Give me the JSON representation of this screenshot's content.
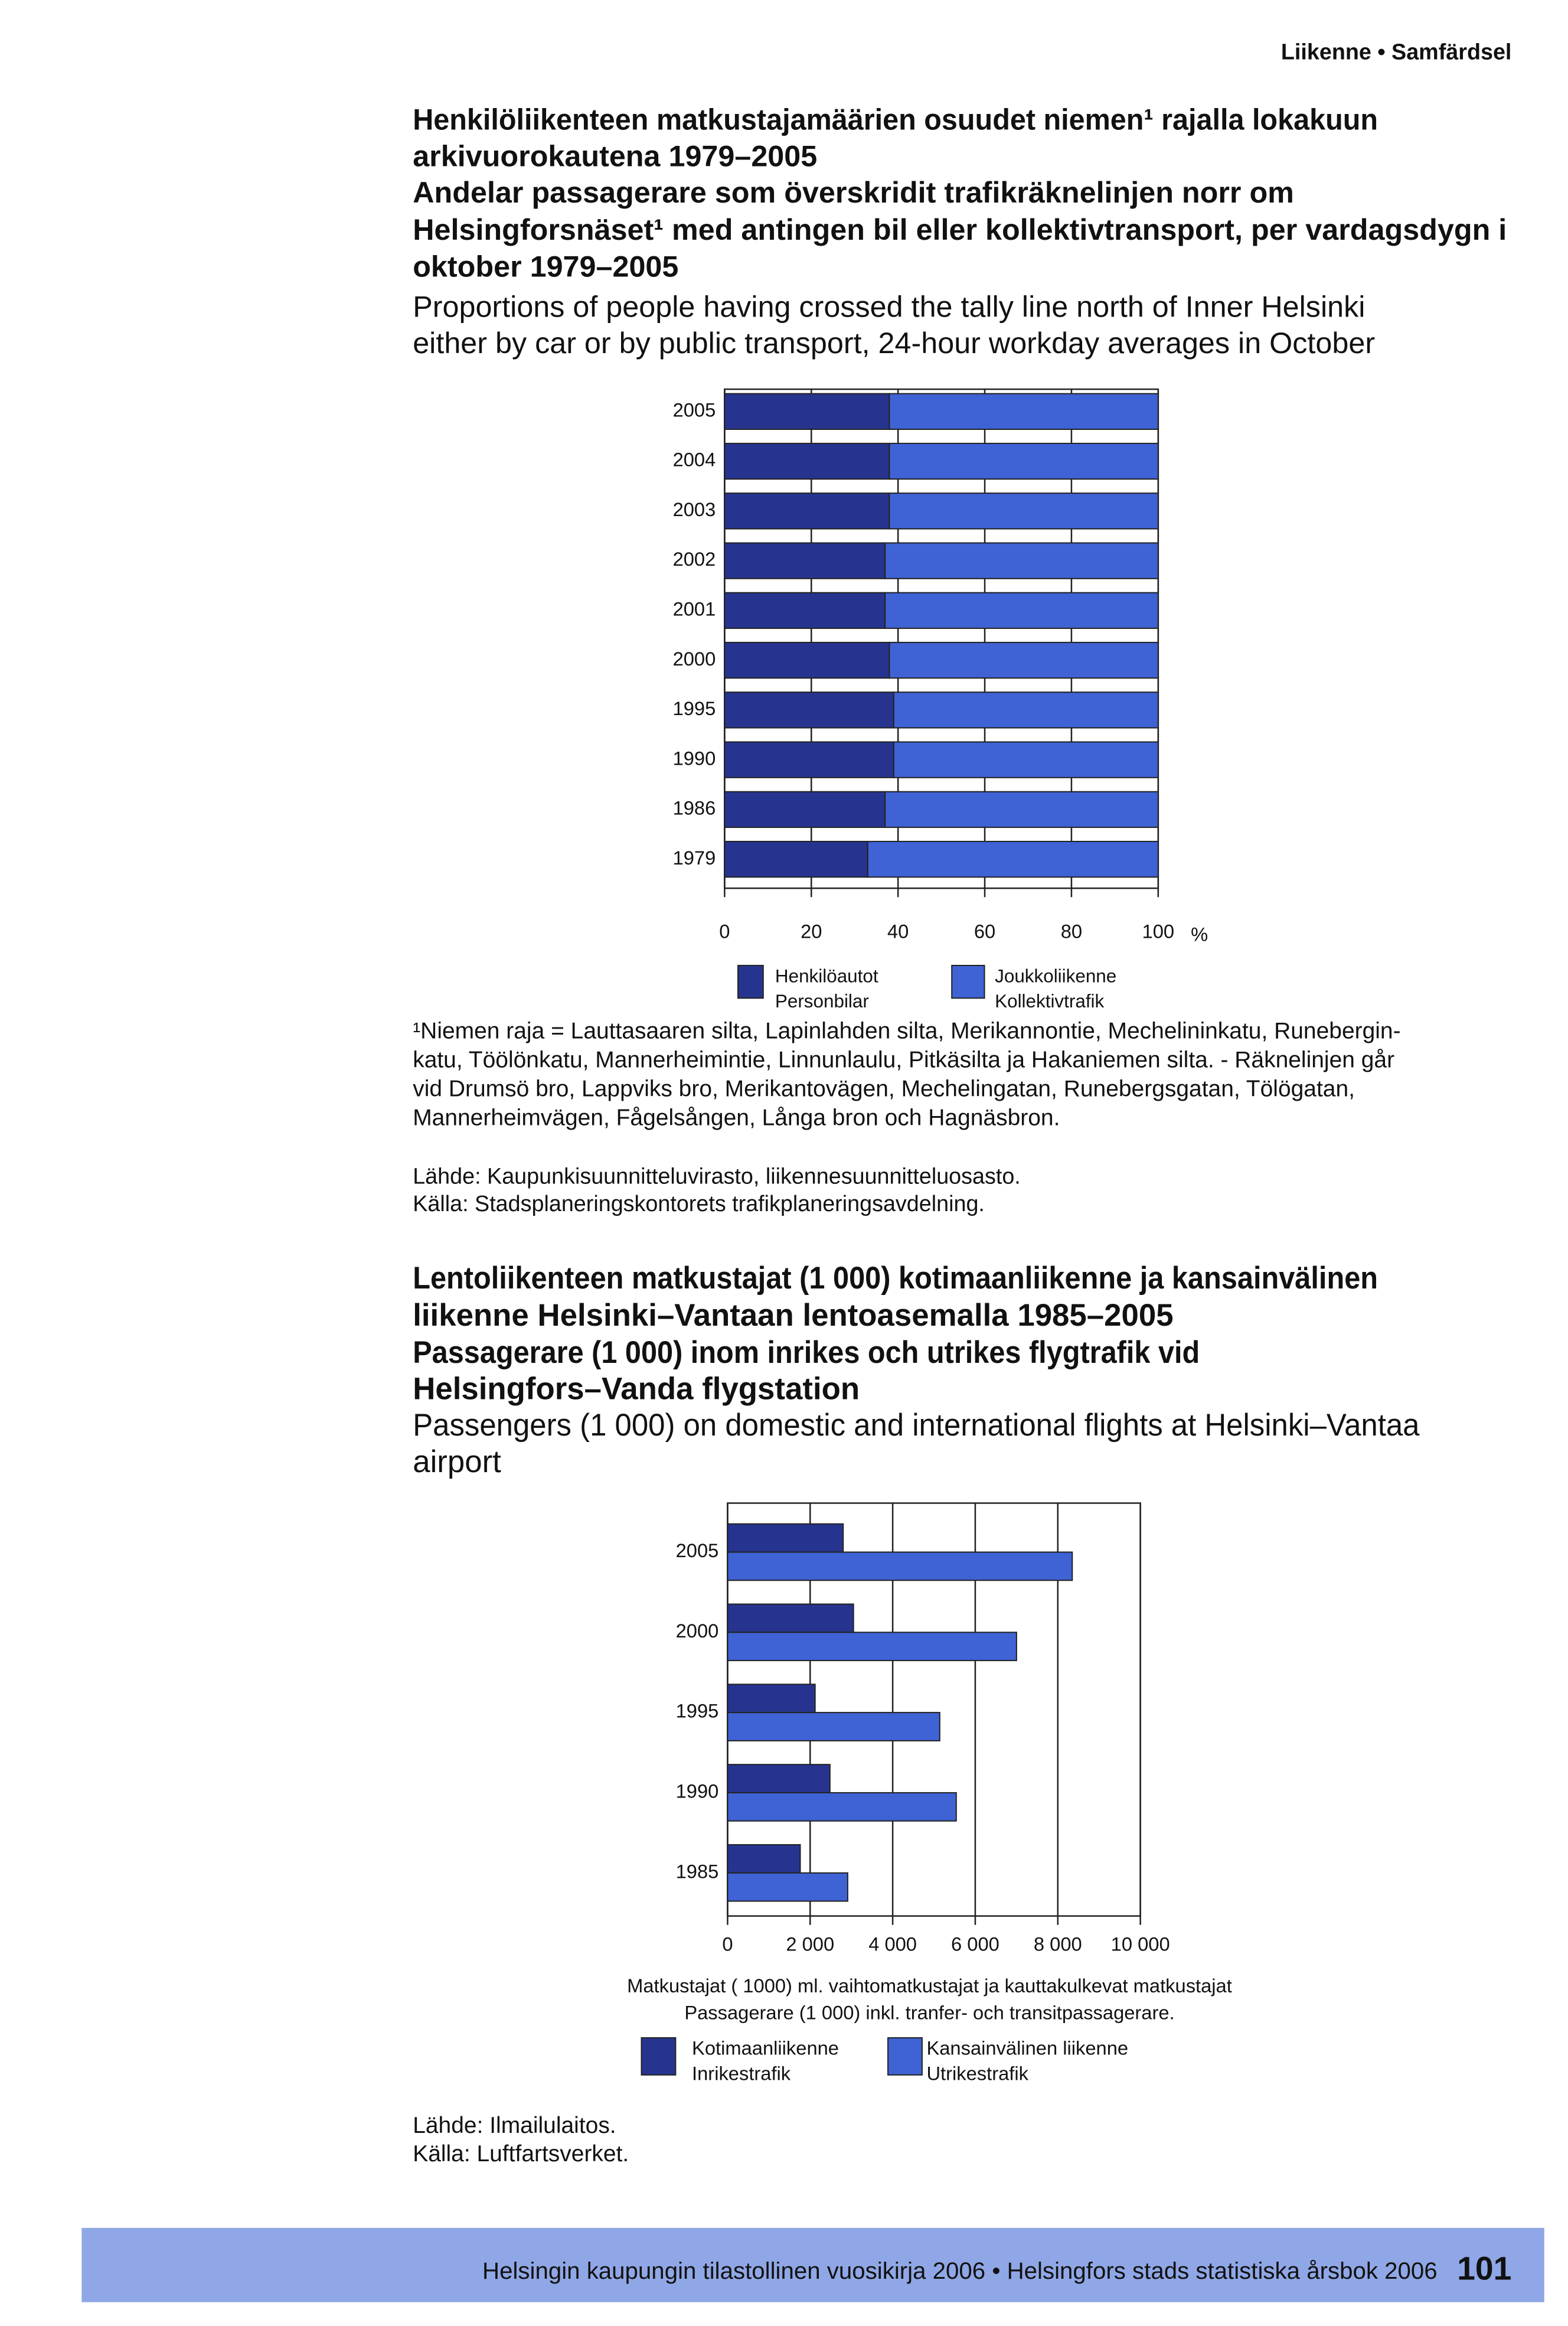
{
  "header": "Liikenne • Samfärdsel",
  "section1": {
    "title_fi": [
      "Henkilöliikenteen matkustajamäärien osuudet niemen¹ rajalla lokakuun",
      "arkivuorokautena 1979–2005"
    ],
    "title_sv": [
      "Andelar passagerare som överskridit trafikräknelinjen norr om",
      "Helsingforsnäset¹ med antingen bil eller kollektivtransport, per vardagsdygn i",
      "oktober 1979–2005"
    ],
    "title_en": [
      "Proportions of people having crossed the tally line north of Inner Helsinki",
      "either by car or by public transport, 24-hour workday averages in October"
    ],
    "footnote": [
      "¹Niemen raja = Lauttasaaren silta, Lapinlahden silta, Merikannontie, Mechelininkatu, Runebergin-",
      "katu, Töölönkatu, Mannerheimintie, Linnunlaulu, Pitkäsilta ja Hakaniemen silta. - Räknelinjen går",
      "vid Drumsö bro, Lappviks bro, Merikantovägen, Mechelingatan, Runebergsgatan, Tölögatan,",
      "Mannerheimvägen, Fågelsången, Långa bron och Hagnäsbron."
    ],
    "sources": [
      "Lähde: Kaupunkisuunnitteluvirasto, liikennesuunnitteluosasto.",
      "Källa: Stadsplaneringskontorets trafikplaneringsavdelning."
    ]
  },
  "chart_data": [
    {
      "type": "bar",
      "orientation": "horizontal",
      "stacked": true,
      "categories": [
        "2005",
        "2004",
        "2003",
        "2002",
        "2001",
        "2000",
        "1995",
        "1990",
        "1986",
        "1979"
      ],
      "series": [
        {
          "name": "Henkilöautot",
          "name_sv": "Personbilar",
          "color": "#27348f",
          "values": [
            38,
            38,
            38,
            37,
            37,
            38,
            39,
            39,
            37,
            33
          ]
        },
        {
          "name": "Joukkoliikenne",
          "name_sv": "Kollektivtrafik",
          "color": "#3f63d4",
          "values": [
            62,
            62,
            62,
            63,
            63,
            62,
            61,
            61,
            63,
            67
          ]
        }
      ],
      "xlim": [
        0,
        100
      ],
      "xticks": [
        0,
        20,
        40,
        60,
        80,
        100
      ],
      "x_unit": "%",
      "grid": true
    },
    {
      "type": "bar",
      "orientation": "horizontal",
      "stacked": false,
      "categories": [
        "2005",
        "2000",
        "1995",
        "1990",
        "1985"
      ],
      "series": [
        {
          "name": "Kotimaanliikenne",
          "name_sv": "Inrikestrafik",
          "color": "#27348f",
          "values": [
            2800,
            3050,
            2120,
            2480,
            1760
          ]
        },
        {
          "name": "Kansainvälinen liikenne",
          "name_sv": "Utrikestrafik",
          "color": "#3f63d4",
          "values": [
            8350,
            7000,
            5140,
            5540,
            2910
          ]
        }
      ],
      "xlim": [
        0,
        10000
      ],
      "xticks": [
        0,
        {
          "value": 2000,
          "label": "2 000"
        },
        {
          "value": 4000,
          "label": "4 000"
        },
        {
          "value": 6000,
          "label": "6 000"
        },
        {
          "value": 8000,
          "label": "8 000"
        },
        {
          "value": 10000,
          "label": "10 000"
        }
      ],
      "x_label": [
        "Matkustajat ( 1000) ml. vaihtomatkustajat ja kauttakulkevat matkustajat",
        "Passagerare (1 000) inkl. tranfer- och transitpassagerare."
      ],
      "grid": true
    }
  ],
  "section2": {
    "title_fi": [
      "Lentoliikenteen matkustajat (1 000) kotimaanliikenne ja kansainvälinen",
      "liikenne Helsinki–Vantaan lentoasemalla 1985–2005"
    ],
    "title_sv": [
      "Passagerare (1 000) inom inrikes och utrikes flygtrafik vid",
      "Helsingfors–Vanda flygstation"
    ],
    "title_en": [
      "Passengers (1 000) on domestic and international flights at Helsinki–Vantaa",
      "airport"
    ],
    "sources": [
      "Lähde: Ilmailulaitos.",
      "Källa: Luftfartsverket."
    ]
  },
  "footer": {
    "text": "Helsingin kaupungin tilastollinen vuosikirja 2006 • Helsingfors stads statistiska årsbok 2006",
    "page": 101
  }
}
